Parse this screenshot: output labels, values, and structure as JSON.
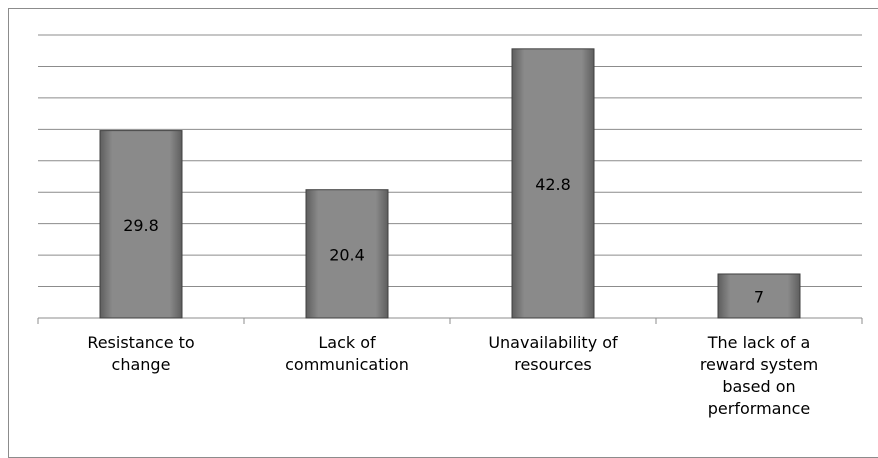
{
  "chart_data": {
    "type": "bar",
    "categories": [
      "Resistance to change",
      "Lack of communication",
      "Unavailability of resources",
      "The lack of a reward system based on performance"
    ],
    "values": [
      29.8,
      20.4,
      42.8,
      7
    ],
    "color": "#7f7f7f",
    "ylim": [
      0,
      45
    ],
    "yticks": [
      0,
      5,
      10,
      15,
      20,
      25,
      30,
      35,
      40,
      45
    ],
    "grid": true
  }
}
